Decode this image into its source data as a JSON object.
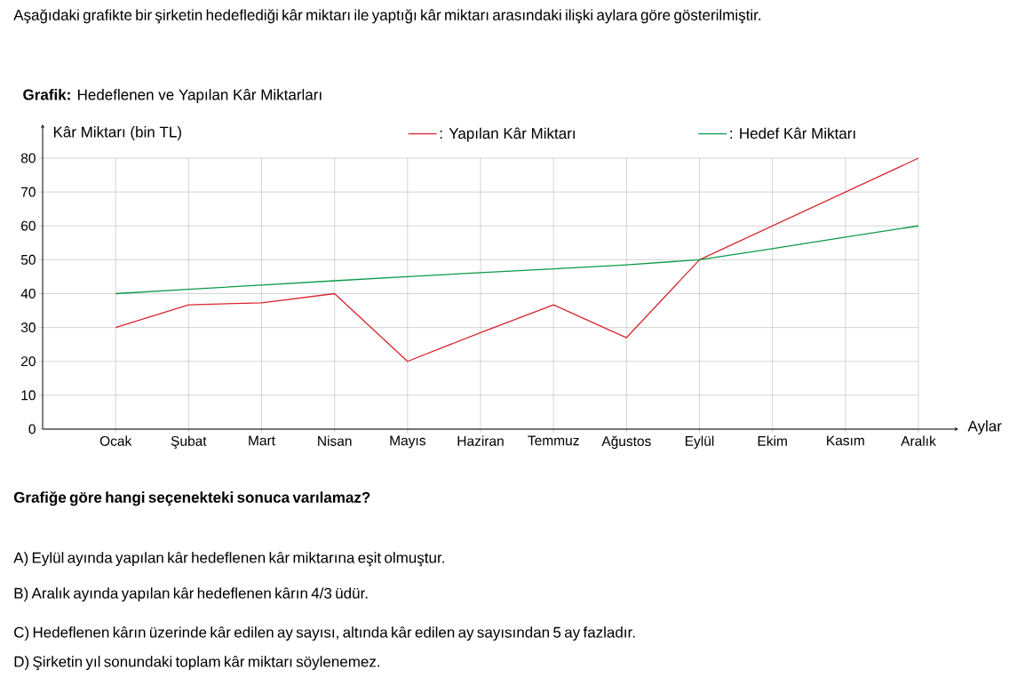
{
  "chart_data": {
    "type": "line",
    "title": "**Grafik:** Hedeflenen ve Yapılan Kâr Miktarları",
    "xlabel": "Aylar",
    "ylabel": "Kâr Miktarı (bin TL)",
    "categories": [
      "Ocak",
      "Şubat",
      "Mart",
      "Nisan",
      "Mayıs",
      "Haziran",
      "Temmuz",
      "Ağustos",
      "Eylül",
      "Ekim",
      "Kasım",
      "Aralık"
    ],
    "series": [
      {
        "name": ": Yapılan Kâr Miktarı",
        "color": "#d7262e",
        "values": [
          30,
          36.7,
          37.3,
          40,
          20,
          28.5,
          36.7,
          27,
          50,
          60,
          70,
          80
        ]
      },
      {
        "name": ": Hedef Kâr Miktarı",
        "color": "#0a9a48",
        "values": [
          40,
          41.3,
          42.5,
          43.8,
          45,
          46.2,
          47.3,
          48.5,
          50,
          53.3,
          56.7,
          60
        ]
      }
    ],
    "ylim": [
      0,
      80
    ],
    "yticks": [
      0,
      10,
      20,
      30,
      40,
      50,
      60,
      70,
      80
    ],
    "grid": true,
    "legend": "top",
    "marker": "none",
    "line_style": "solid",
    "annotations": [
      "Aşağıdaki grafikte bir şirketin hedeflediği kâr miktarı ile yaptığı kâr miktarı arasındaki ilişki aylara göre gösterilmiştir.",
      "Grafiğe göre hangi seçenekteki sonuca varılamaz?",
      "A) Eylül ayında yapılan kâr hedeflenen kâr miktarına eşit olmuştur.",
      "B) Aralık ayında yapılan kâr hedeflenen kârın 4/3 üdür.",
      "C) Hedeflenen kârın üzerinde kâr edilen ay sayısı, altında kâr edilen ay sayısından 5 ay fazladır.",
      "D) Şirketin yıl sonundaki toplam kâr miktarı söylenemez."
    ]
  }
}
